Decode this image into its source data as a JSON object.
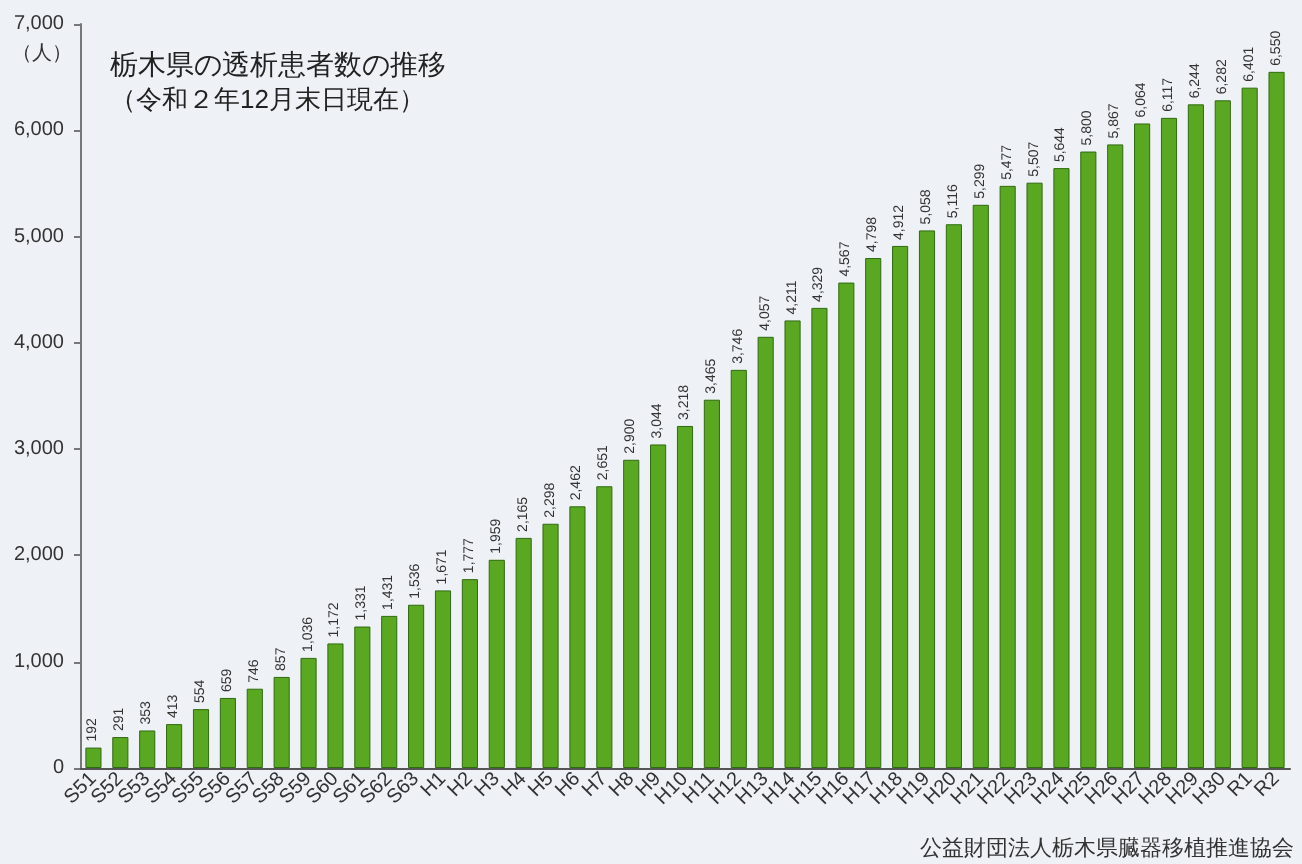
{
  "chart_data": {
    "type": "bar",
    "title": "栃木県の透析患者数の推移",
    "subtitle": "（令和２年12月末日現在）",
    "ylabel": "（人）",
    "categories": [
      "S51",
      "S52",
      "S53",
      "S54",
      "S55",
      "S56",
      "S57",
      "S58",
      "S59",
      "S60",
      "S61",
      "S62",
      "S63",
      "H1",
      "H2",
      "H3",
      "H4",
      "H5",
      "H6",
      "H7",
      "H8",
      "H9",
      "H10",
      "H11",
      "H12",
      "H13",
      "H14",
      "H15",
      "H16",
      "H17",
      "H18",
      "H19",
      "H20",
      "H21",
      "H22",
      "H23",
      "H24",
      "H25",
      "H26",
      "H27",
      "H28",
      "H29",
      "H30",
      "R1",
      "R2"
    ],
    "values": [
      192,
      291,
      353,
      413,
      554,
      659,
      746,
      857,
      1036,
      1172,
      1331,
      1431,
      1536,
      1671,
      1777,
      1959,
      2165,
      2298,
      2462,
      2651,
      2900,
      3044,
      3218,
      3465,
      3746,
      4057,
      4211,
      4329,
      4567,
      4798,
      4912,
      5058,
      5116,
      5299,
      5477,
      5507,
      5644,
      5800,
      5867,
      6064,
      6117,
      6244,
      6282,
      6401,
      6550
    ],
    "value_labels": [
      "192",
      "291",
      "353",
      "413",
      "554",
      "659",
      "746",
      "857",
      "1,036",
      "1,172",
      "1,331",
      "1,431",
      "1,536",
      "1,671",
      "1,777",
      "1,959",
      "2,165",
      "2,298",
      "2,462",
      "2,651",
      "2,900",
      "3,044",
      "3,218",
      "3,465",
      "3,746",
      "4,057",
      "4,211",
      "4,329",
      "4,567",
      "4,798",
      "4,912",
      "5,058",
      "5,116",
      "5,299",
      "5,477",
      "5,507",
      "5,644",
      "5,800",
      "5,867",
      "6,064",
      "6,117",
      "6,244",
      "6,282",
      "6,401",
      "6,550"
    ],
    "color": "#5aa821",
    "ylim": [
      0,
      7000
    ],
    "yticks": [
      0,
      {
        "value": 1000,
        "label": "1,000"
      },
      {
        "value": 2000,
        "label": "2,000"
      },
      {
        "value": 3000,
        "label": "3,000"
      },
      {
        "value": 4000,
        "label": "4,000"
      },
      {
        "value": 5000,
        "label": "5,000"
      },
      {
        "value": 6000,
        "label": "6,000"
      },
      {
        "value": 7000,
        "label": "7,000"
      }
    ],
    "grid": false,
    "annotations": [
      "公益財団法人栃木県臓器移植推進協会"
    ]
  }
}
